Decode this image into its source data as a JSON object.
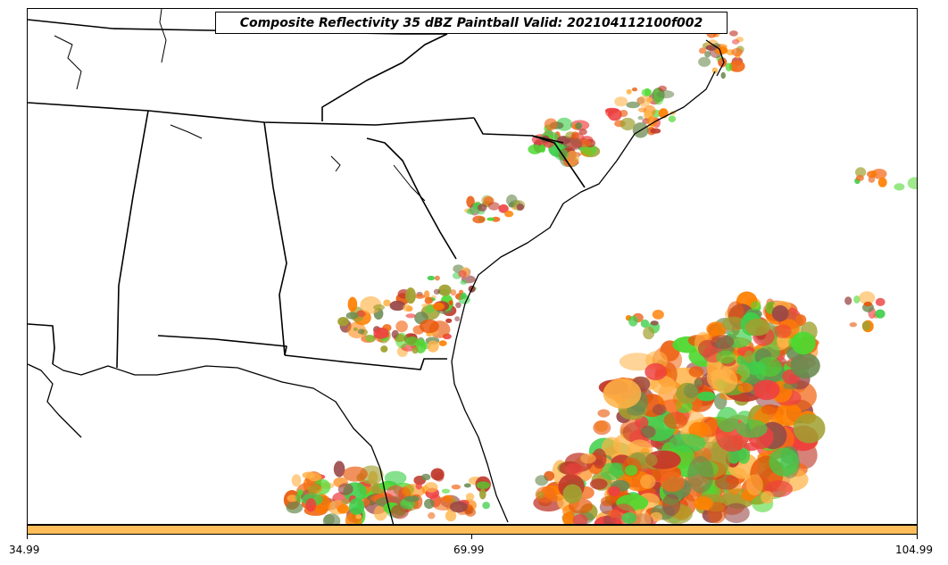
{
  "title": "Composite Reflectivity 35 dBZ Paintball Valid: 202104112100f002",
  "colorbar": {
    "color": "#ffbe5a",
    "ticks": [
      "34.99",
      "69.99",
      "104.99"
    ]
  },
  "member_colors": [
    "#ff7f00",
    "#e8580a",
    "#f26a1a",
    "#ee4040",
    "#9a4848",
    "#a0a030",
    "#4fd830",
    "#3ecf4a",
    "#ffb347",
    "#6a8a50",
    "#c0392b"
  ]
}
